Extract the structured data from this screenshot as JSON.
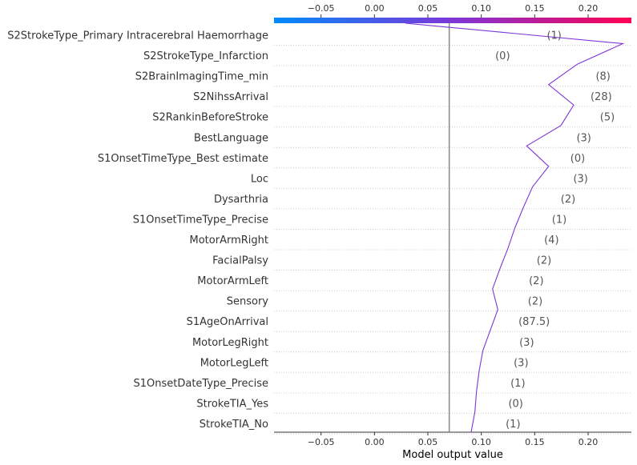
{
  "chart_data": {
    "type": "line",
    "xlabel": "Model output value",
    "xticks": [
      -0.05,
      0.0,
      0.05,
      0.1,
      0.15,
      0.2
    ],
    "xtick_labels": [
      "−0.05",
      "0.00",
      "0.05",
      "0.10",
      "0.15",
      "0.20"
    ],
    "xlim": [
      -0.094,
      0.2405
    ],
    "base_value": 0.07,
    "colorbar": {
      "from": "#008bfb",
      "mid": "#7e36d8",
      "to": "#ff0052"
    },
    "line_color": "#7e36d8",
    "features": [
      "S2StrokeType_Primary Intracerebral Haemorrhage",
      "S2StrokeType_Infarction",
      "S2BrainImagingTime_min",
      "S2NihssArrival",
      "S2RankinBeforeStroke",
      "BestLanguage",
      "S1OnsetTimeType_Best estimate",
      "Loc",
      "Dysarthria",
      "S1OnsetTimeType_Precise",
      "MotorArmRight",
      "FacialPalsy",
      "MotorArmLeft",
      "Sensory",
      "S1AgeOnArrival",
      "MotorLegRight",
      "MotorLegLeft",
      "S1OnsetDateType_Precise",
      "StrokeTIA_Yes",
      "StrokeTIA_No"
    ],
    "feature_values": [
      "(1)",
      "(0)",
      "(8)",
      "(28)",
      "(5)",
      "(3)",
      "(0)",
      "(3)",
      "(2)",
      "(1)",
      "(4)",
      "(2)",
      "(2)",
      "(2)",
      "(87.5)",
      "(3)",
      "(3)",
      "(1)",
      "(0)",
      "(1)"
    ],
    "path_x": [
      0.029,
      0.2325,
      0.19,
      0.163,
      0.1865,
      0.1745,
      0.1425,
      0.163,
      0.148,
      0.1395,
      0.1315,
      0.125,
      0.1175,
      0.1105,
      0.1155,
      0.1085,
      0.1015,
      0.098,
      0.0955,
      0.094,
      0.0905
    ],
    "path_y_ticks": 20
  }
}
